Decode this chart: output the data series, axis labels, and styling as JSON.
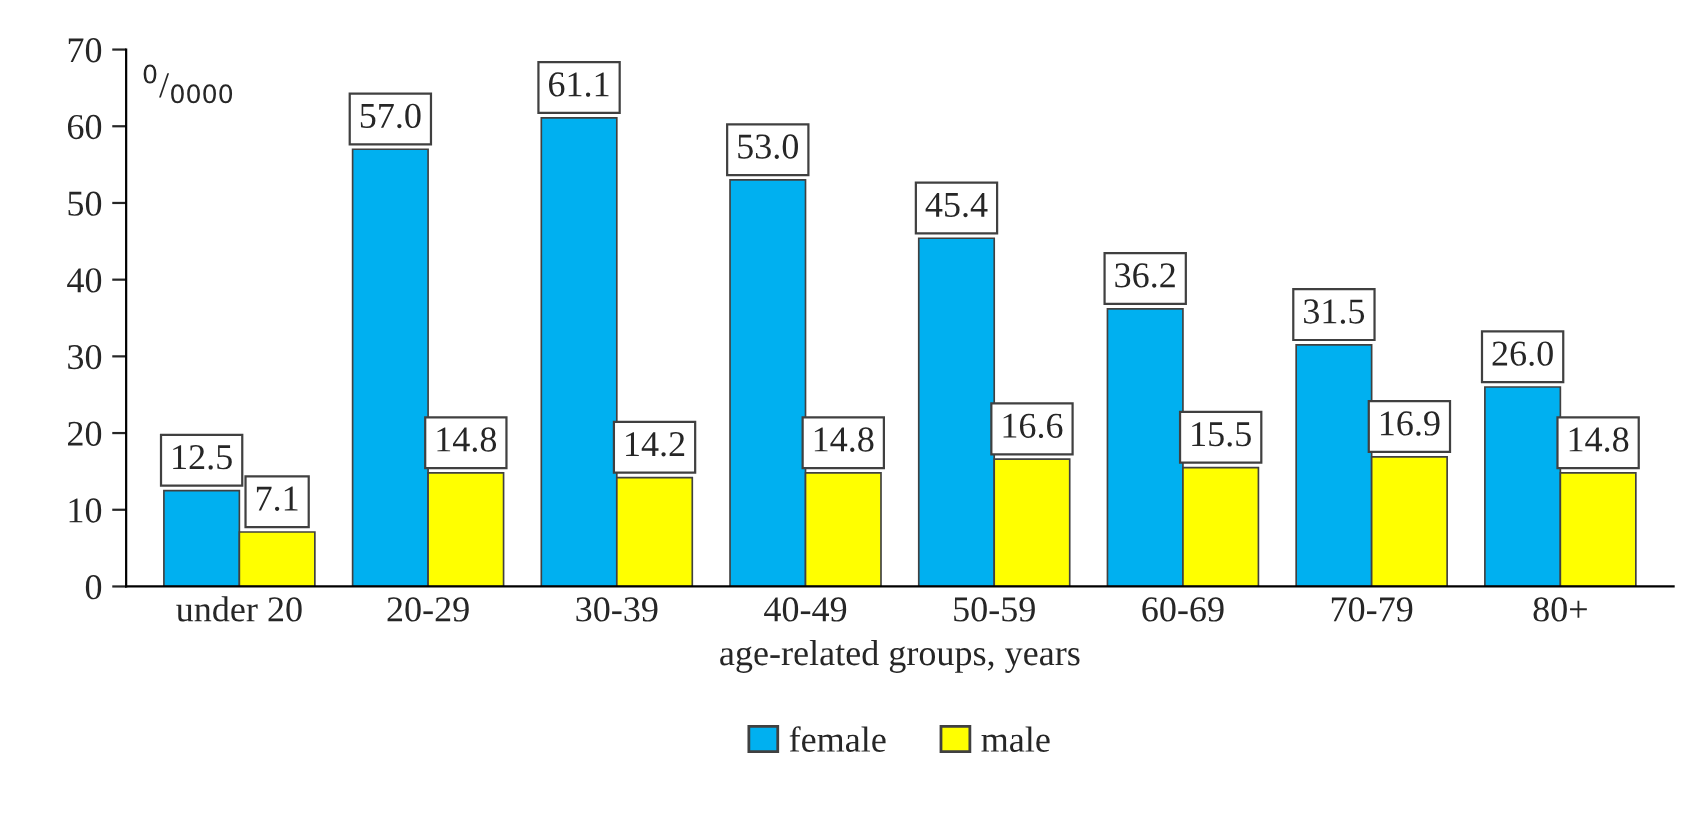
{
  "chart_data": {
    "type": "bar",
    "xlabel": "age-related groups, years",
    "ylabel": "$^{0}$/$_{0000}$",
    "categories": [
      "under 20",
      "20-29",
      "30-39",
      "40-49",
      "50-59",
      "60-69",
      "70-79",
      "80+"
    ],
    "series": [
      {
        "name": "female",
        "color": "#00b0f0",
        "values": [
          12.5,
          57.0,
          61.1,
          53.0,
          45.4,
          36.2,
          31.5,
          26.0
        ],
        "value_labels": [
          "12.5",
          "57.0",
          "61.1",
          "53.0",
          "45.4",
          "36.2",
          "31.5",
          "26.0"
        ]
      },
      {
        "name": "male",
        "color": "#ffff00",
        "values": [
          7.1,
          14.8,
          14.2,
          14.8,
          16.6,
          15.5,
          16.9,
          14.8
        ],
        "value_labels": [
          "7.1",
          "14.8",
          "14.2",
          "14.8",
          "16.6",
          "15.5",
          "16.9",
          "14.8"
        ]
      }
    ],
    "ylim": [
      0,
      70
    ],
    "yticks": [
      0,
      10,
      20,
      30,
      40,
      50,
      60,
      70
    ],
    "grid": false,
    "legend": "bottom"
  }
}
